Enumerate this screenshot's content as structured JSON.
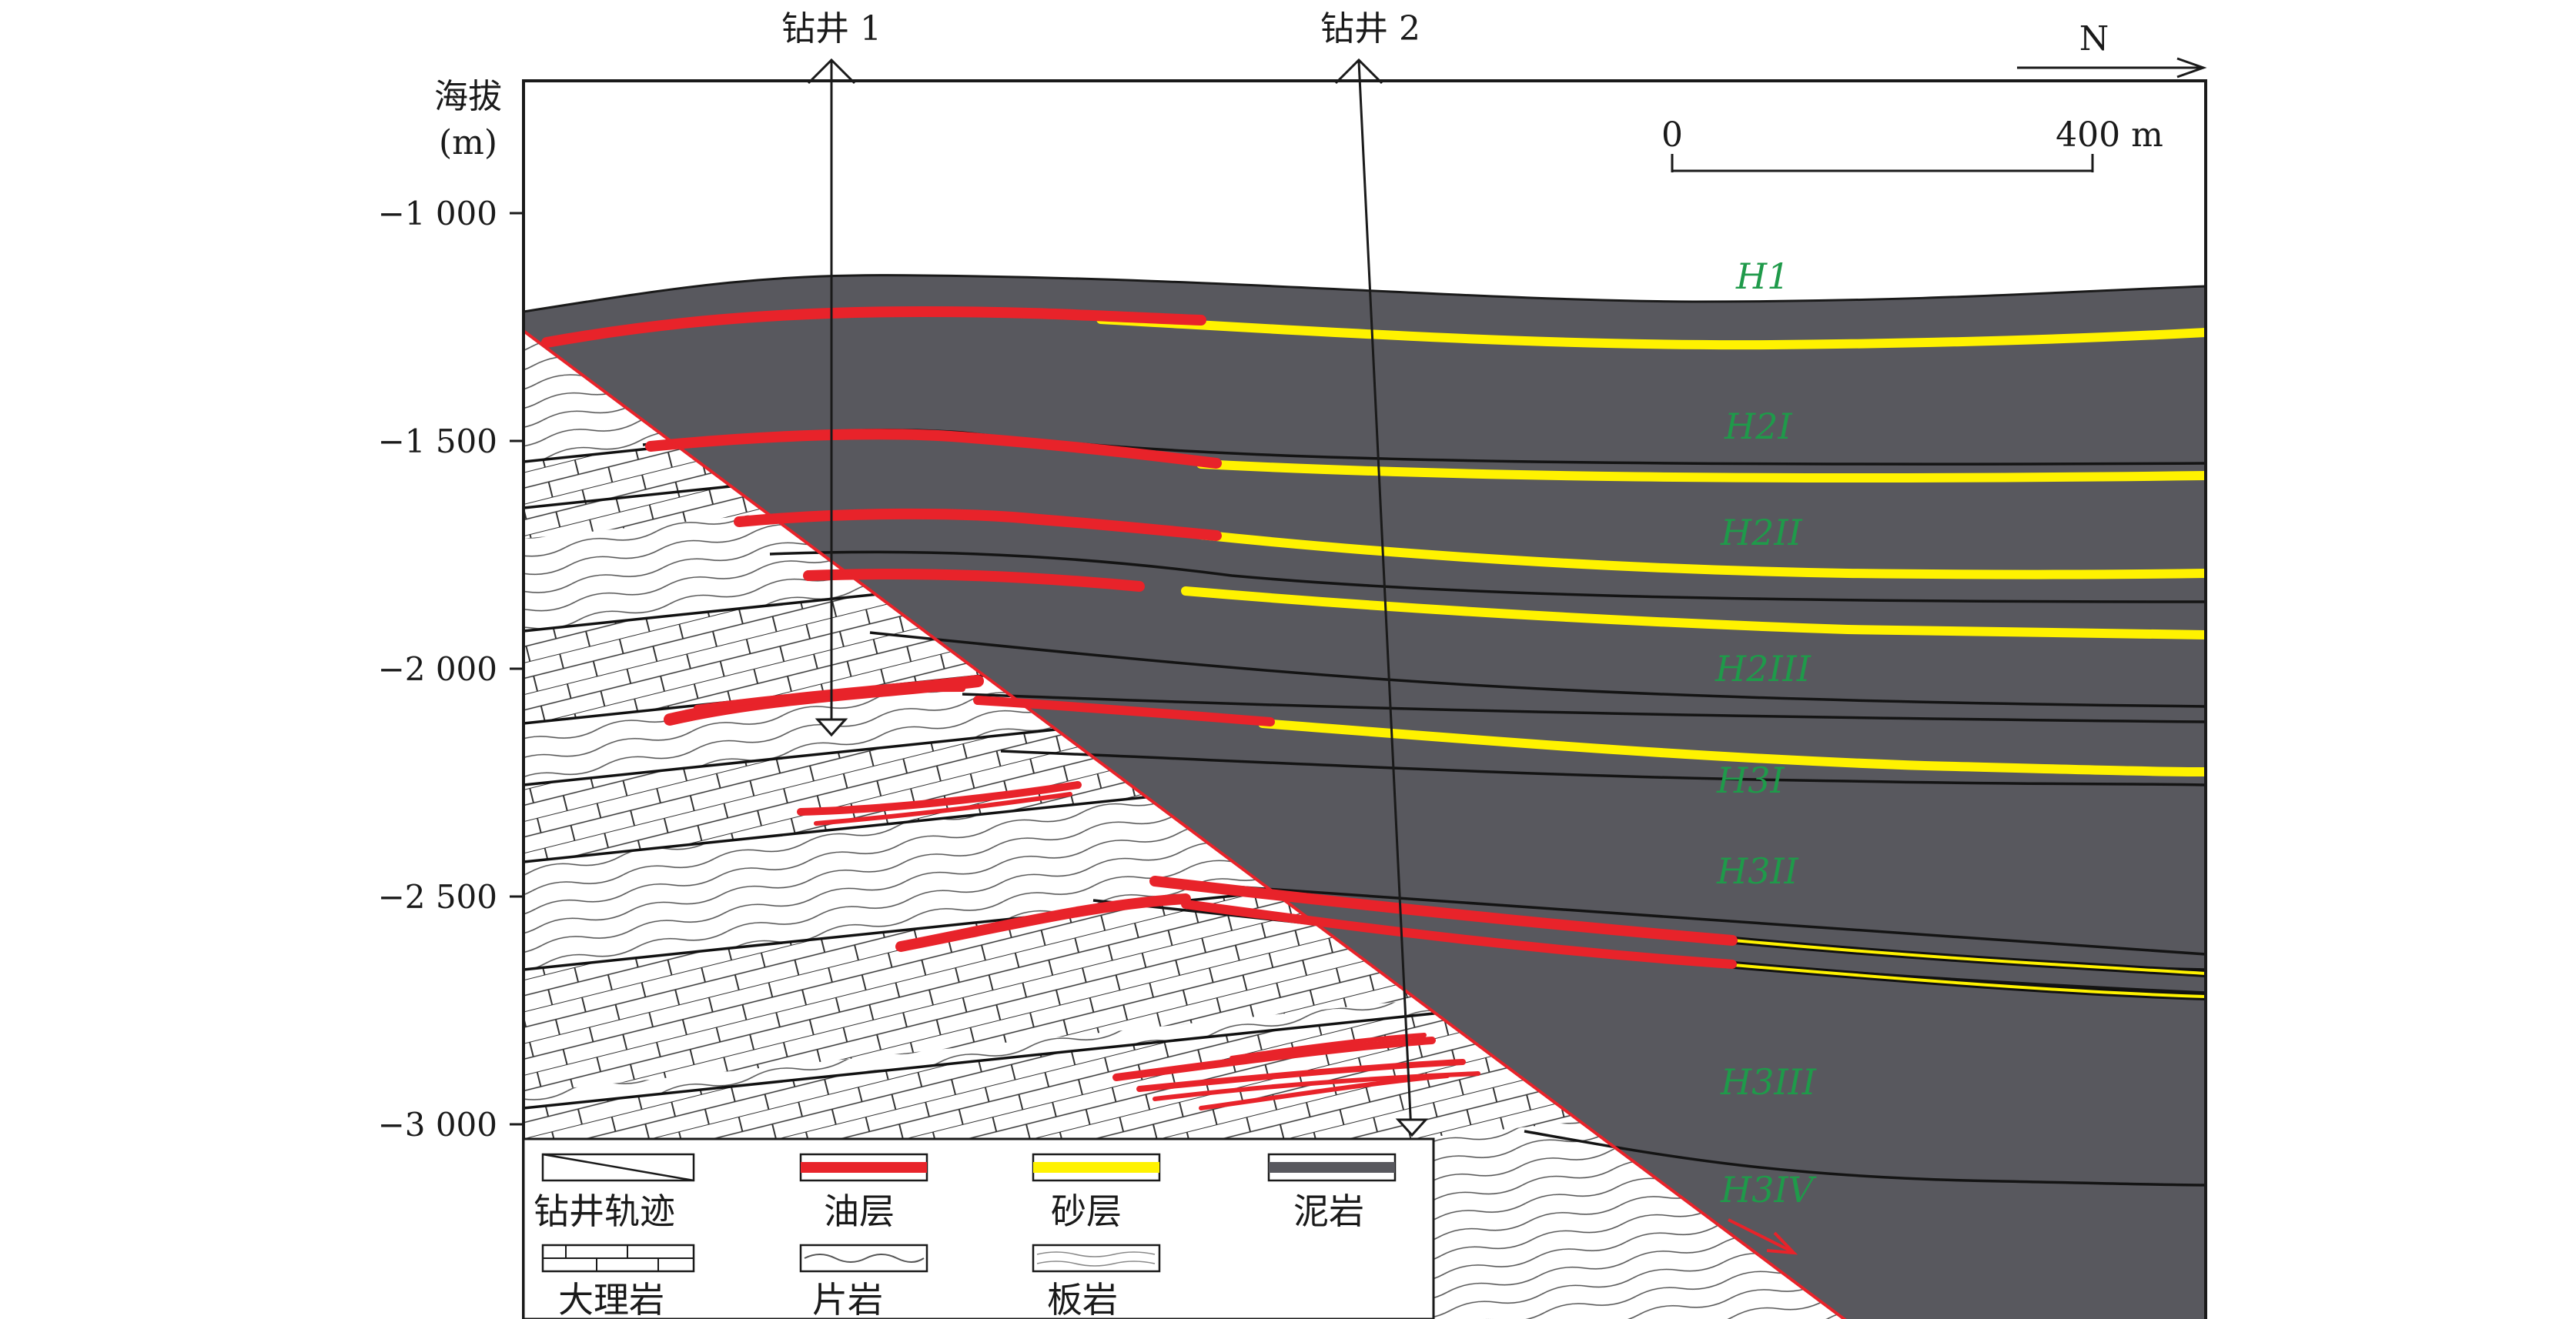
{
  "wells": [
    {
      "label": "钻井 1"
    },
    {
      "label": "钻井 2"
    }
  ],
  "north": "N",
  "elevation_title": "海拔",
  "elevation_unit": "(m)",
  "y_ticks": [
    "−1 000",
    "−1 500",
    "−2 000",
    "−2 500",
    "−3 000"
  ],
  "scale_bar": {
    "start": "0",
    "end": "400 m"
  },
  "horizons": [
    "H1",
    "H2I",
    "H2II",
    "H2III",
    "H3I",
    "H3II",
    "H3III",
    "H3IV"
  ],
  "legend": {
    "row1": [
      "钻井轨迹",
      "油层",
      "砂层",
      "泥岩"
    ],
    "row2": [
      "大理岩",
      "片岩",
      "板岩"
    ]
  },
  "colors": {
    "mudstone": "#58585e",
    "oil_layer": "#e8232a",
    "sand_layer": "#fff200",
    "horizon_label": "#1f9a4a",
    "fault": "#e8232a"
  }
}
